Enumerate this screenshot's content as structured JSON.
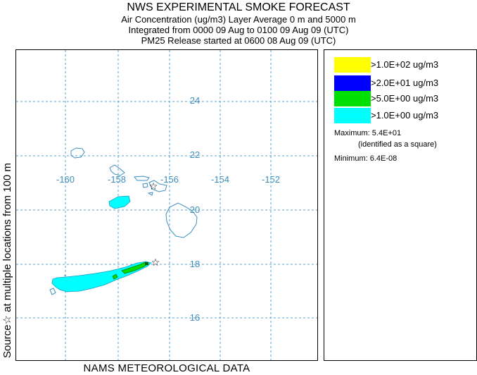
{
  "header": {
    "title": "NWS EXPERIMENTAL SMOKE FORECAST",
    "line2": "Air Concentration (ug/m3) Layer Average    0 m and  5000 m",
    "line3": "Integrated from 0000 09 Aug to 0100 09 Aug 09 (UTC)",
    "line4": "PM25 Release started at 0600 08 Aug 09 (UTC)"
  },
  "side_label": "Source☆ at multiple locations      from   100 m",
  "footer": "NAMS METEOROLOGICAL DATA",
  "map": {
    "lon_labels": [
      "-160",
      "-158",
      "-156",
      "-154",
      "-152"
    ],
    "lat_labels": [
      "24",
      "22",
      "20",
      "18",
      "16"
    ],
    "source_icon": "star-icon"
  },
  "legend": {
    "items": [
      {
        "label": ">1.0E+02 ug/m3",
        "color": "#ffff00"
      },
      {
        "label": ">2.0E+01 ug/m3",
        "color": "#0000ff"
      },
      {
        "label": ">5.0E+00 ug/m3",
        "color": "#00e000"
      },
      {
        "label": ">1.0E+00 ug/m3",
        "color": "#00ffff"
      }
    ],
    "maximum_label": "Maximum:",
    "maximum_value": "5.4E+01",
    "maximum_note": "(identified as a square)",
    "minimum_label": "Minimum:",
    "minimum_value": "6.4E-08"
  },
  "colors": {
    "grid": "#5aa0c8",
    "coast": "#3b8fc0",
    "plume_low": "#00ffff",
    "plume_mid": "#00e000",
    "plume_max": "#006000"
  }
}
